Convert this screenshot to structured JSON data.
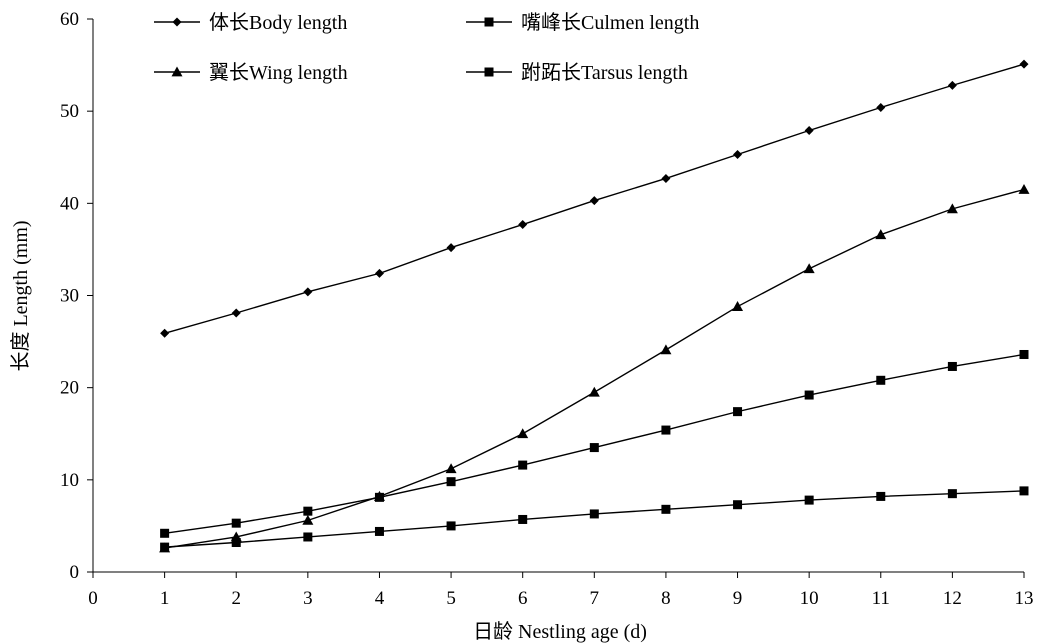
{
  "chart_data": {
    "type": "line",
    "xlabel": "日龄 Nestling age (d)",
    "ylabel": "长度 Length (mm)",
    "xlim": [
      0,
      13
    ],
    "ylim": [
      0,
      60
    ],
    "x_ticks": [
      "0",
      "1",
      "2",
      "3",
      "4",
      "5",
      "6",
      "7",
      "8",
      "9",
      "10",
      "11",
      "12",
      "13"
    ],
    "y_ticks": [
      "0",
      "10",
      "20",
      "30",
      "40",
      "50",
      "60"
    ],
    "grid": false,
    "legend_position": "top-left",
    "x": [
      1,
      2,
      3,
      4,
      5,
      6,
      7,
      8,
      9,
      10,
      11,
      12,
      13
    ],
    "series": [
      {
        "name": "体长Body length",
        "marker": "diamond",
        "values": [
          25.9,
          28.1,
          30.4,
          32.4,
          35.2,
          37.7,
          40.3,
          42.7,
          45.3,
          47.9,
          50.4,
          52.8,
          55.1
        ]
      },
      {
        "name": "嘴峰长Culmen length",
        "marker": "square",
        "values": [
          2.7,
          3.2,
          3.8,
          4.4,
          5.0,
          5.7,
          6.3,
          6.8,
          7.3,
          7.8,
          8.2,
          8.5,
          8.8
        ]
      },
      {
        "name": "翼长Wing length",
        "marker": "triangle",
        "values": [
          2.6,
          3.8,
          5.6,
          8.2,
          11.2,
          15.0,
          19.5,
          24.1,
          28.8,
          32.9,
          36.6,
          39.4,
          41.5
        ]
      },
      {
        "name": "跗跖长Tarsus length",
        "marker": "square",
        "values": [
          4.2,
          5.3,
          6.6,
          8.1,
          9.8,
          11.6,
          13.5,
          15.4,
          17.4,
          19.2,
          20.8,
          22.3,
          23.6
        ]
      }
    ]
  }
}
